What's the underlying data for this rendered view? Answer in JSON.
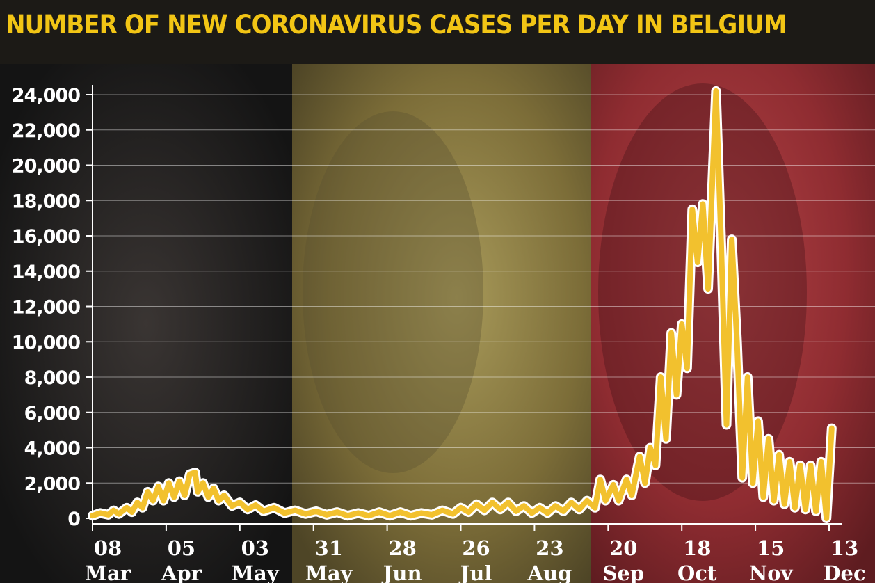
{
  "chart_data": {
    "type": "line",
    "title": "NUMBER OF NEW CORONAVIRUS CASES PER DAY IN BELGIUM",
    "xlabel": "",
    "ylabel": "",
    "ylim": [
      0,
      24000
    ],
    "grid": true,
    "y_ticks": [
      0,
      2000,
      4000,
      6000,
      8000,
      10000,
      12000,
      14000,
      16000,
      18000,
      20000,
      22000,
      24000
    ],
    "y_tick_labels": [
      "0",
      "2,000",
      "4,000",
      "6,000",
      "8,000",
      "10,000",
      "12,000",
      "14,000",
      "16,000",
      "18,000",
      "20,000",
      "22,000",
      "24,000"
    ],
    "x_ticks": [
      {
        "day": "08",
        "month": "Mar",
        "date": "2020-03-08"
      },
      {
        "day": "05",
        "month": "Apr",
        "date": "2020-04-05"
      },
      {
        "day": "03",
        "month": "May",
        "date": "2020-05-03"
      },
      {
        "day": "31",
        "month": "May",
        "date": "2020-05-31"
      },
      {
        "day": "28",
        "month": "Jun",
        "date": "2020-06-28"
      },
      {
        "day": "26",
        "month": "Jul",
        "date": "2020-07-26"
      },
      {
        "day": "23",
        "month": "Aug",
        "date": "2020-08-23"
      },
      {
        "day": "20",
        "month": "Sep",
        "date": "2020-09-20"
      },
      {
        "day": "18",
        "month": "Oct",
        "date": "2020-10-18"
      },
      {
        "day": "15",
        "month": "Nov",
        "date": "2020-11-15"
      },
      {
        "day": "13",
        "month": "Dec",
        "date": "2020-12-13"
      }
    ],
    "x_range": [
      "2020-03-08",
      "2020-12-13"
    ],
    "series": [
      {
        "color": "#f2c12e",
        "points": [
          [
            "2020-03-08",
            150
          ],
          [
            "2020-03-11",
            300
          ],
          [
            "2020-03-14",
            200
          ],
          [
            "2020-03-16",
            450
          ],
          [
            "2020-03-18",
            250
          ],
          [
            "2020-03-21",
            600
          ],
          [
            "2020-03-23",
            350
          ],
          [
            "2020-03-25",
            900
          ],
          [
            "2020-03-27",
            600
          ],
          [
            "2020-03-29",
            1500
          ],
          [
            "2020-03-31",
            1000
          ],
          [
            "2020-04-02",
            1800
          ],
          [
            "2020-04-04",
            1000
          ],
          [
            "2020-04-06",
            2000
          ],
          [
            "2020-04-08",
            1200
          ],
          [
            "2020-04-10",
            2100
          ],
          [
            "2020-04-12",
            1300
          ],
          [
            "2020-04-14",
            2500
          ],
          [
            "2020-04-16",
            2600
          ],
          [
            "2020-04-17",
            1500
          ],
          [
            "2020-04-19",
            2000
          ],
          [
            "2020-04-21",
            1200
          ],
          [
            "2020-04-23",
            1700
          ],
          [
            "2020-04-25",
            1000
          ],
          [
            "2020-04-27",
            1300
          ],
          [
            "2020-04-30",
            700
          ],
          [
            "2020-05-03",
            900
          ],
          [
            "2020-05-06",
            500
          ],
          [
            "2020-05-09",
            750
          ],
          [
            "2020-05-12",
            400
          ],
          [
            "2020-05-16",
            600
          ],
          [
            "2020-05-20",
            300
          ],
          [
            "2020-05-24",
            450
          ],
          [
            "2020-05-28",
            250
          ],
          [
            "2020-06-01",
            400
          ],
          [
            "2020-06-05",
            200
          ],
          [
            "2020-06-09",
            350
          ],
          [
            "2020-06-13",
            150
          ],
          [
            "2020-06-17",
            300
          ],
          [
            "2020-06-21",
            150
          ],
          [
            "2020-06-25",
            350
          ],
          [
            "2020-06-29",
            150
          ],
          [
            "2020-07-03",
            350
          ],
          [
            "2020-07-07",
            150
          ],
          [
            "2020-07-11",
            300
          ],
          [
            "2020-07-15",
            200
          ],
          [
            "2020-07-19",
            450
          ],
          [
            "2020-07-23",
            250
          ],
          [
            "2020-07-26",
            600
          ],
          [
            "2020-07-29",
            350
          ],
          [
            "2020-08-01",
            800
          ],
          [
            "2020-08-04",
            450
          ],
          [
            "2020-08-07",
            900
          ],
          [
            "2020-08-10",
            500
          ],
          [
            "2020-08-13",
            900
          ],
          [
            "2020-08-16",
            400
          ],
          [
            "2020-08-19",
            700
          ],
          [
            "2020-08-22",
            300
          ],
          [
            "2020-08-25",
            600
          ],
          [
            "2020-08-28",
            300
          ],
          [
            "2020-08-31",
            700
          ],
          [
            "2020-09-03",
            400
          ],
          [
            "2020-09-06",
            900
          ],
          [
            "2020-09-09",
            500
          ],
          [
            "2020-09-12",
            1000
          ],
          [
            "2020-09-15",
            600
          ],
          [
            "2020-09-17",
            2200
          ],
          [
            "2020-09-19",
            1000
          ],
          [
            "2020-09-22",
            1900
          ],
          [
            "2020-09-24",
            1000
          ],
          [
            "2020-09-27",
            2200
          ],
          [
            "2020-09-29",
            1300
          ],
          [
            "2020-10-02",
            3500
          ],
          [
            "2020-10-04",
            2000
          ],
          [
            "2020-10-06",
            4000
          ],
          [
            "2020-10-08",
            3000
          ],
          [
            "2020-10-10",
            8000
          ],
          [
            "2020-10-12",
            4500
          ],
          [
            "2020-10-14",
            10500
          ],
          [
            "2020-10-16",
            7000
          ],
          [
            "2020-10-18",
            11000
          ],
          [
            "2020-10-20",
            8500
          ],
          [
            "2020-10-22",
            17500
          ],
          [
            "2020-10-24",
            14500
          ],
          [
            "2020-10-26",
            17800
          ],
          [
            "2020-10-28",
            13000
          ],
          [
            "2020-10-31",
            24200
          ],
          [
            "2020-11-02",
            15500
          ],
          [
            "2020-11-04",
            5300
          ],
          [
            "2020-11-06",
            15800
          ],
          [
            "2020-11-08",
            10000
          ],
          [
            "2020-11-10",
            2300
          ],
          [
            "2020-11-12",
            8000
          ],
          [
            "2020-11-14",
            2000
          ],
          [
            "2020-11-16",
            5500
          ],
          [
            "2020-11-18",
            1200
          ],
          [
            "2020-11-20",
            4500
          ],
          [
            "2020-11-22",
            1000
          ],
          [
            "2020-11-24",
            3600
          ],
          [
            "2020-11-26",
            800
          ],
          [
            "2020-11-28",
            3200
          ],
          [
            "2020-11-30",
            600
          ],
          [
            "2020-12-02",
            3000
          ],
          [
            "2020-12-04",
            500
          ],
          [
            "2020-12-06",
            3000
          ],
          [
            "2020-12-08",
            400
          ],
          [
            "2020-12-10",
            3200
          ],
          [
            "2020-12-12",
            0
          ],
          [
            "2020-12-14",
            5100
          ]
        ]
      }
    ]
  }
}
